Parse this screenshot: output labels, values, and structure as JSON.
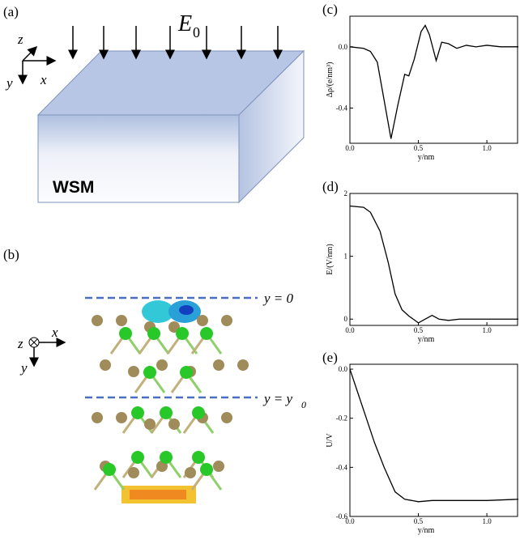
{
  "chart_data": [
    {
      "type": "line",
      "label": "(c)",
      "xlabel": "y/nm",
      "ylabel": "Δρ/(e/nm³)",
      "x": [
        0,
        0.1,
        0.15,
        0.2,
        0.25,
        0.3,
        0.35,
        0.4,
        0.43,
        0.47,
        0.52,
        0.55,
        0.58,
        0.63,
        0.67,
        0.72,
        0.78,
        0.85,
        0.92,
        1.0,
        1.1,
        1.23
      ],
      "series": [
        {
          "color": "#000000",
          "values": [
            0,
            -0.01,
            -0.03,
            -0.1,
            -0.35,
            -0.6,
            -0.38,
            -0.18,
            -0.19,
            -0.08,
            0.1,
            0.14,
            0.08,
            -0.09,
            0.03,
            0.02,
            -0.01,
            0.01,
            0.0,
            0.01,
            0.0,
            0.0
          ]
        }
      ],
      "xlim": [
        0,
        1.23
      ],
      "xticks": [
        {
          "value": 0,
          "label": "0.0"
        },
        {
          "value": 0.5,
          "label": "0.5"
        },
        {
          "value": 1,
          "label": "1.0"
        }
      ],
      "ylim": [
        -0.63,
        0.2
      ],
      "yticks": [
        {
          "value": 0,
          "label": "0.0"
        },
        {
          "value": -0.4,
          "label": "-0.4"
        }
      ]
    },
    {
      "type": "line",
      "label": "(d)",
      "xlabel": "y/nm",
      "ylabel": "E/(V/nm)",
      "x": [
        0,
        0.1,
        0.15,
        0.22,
        0.28,
        0.33,
        0.38,
        0.43,
        0.5,
        0.55,
        0.6,
        0.65,
        0.72,
        0.8,
        1.0,
        1.23
      ],
      "series": [
        {
          "color": "#000000",
          "values": [
            1.8,
            1.78,
            1.7,
            1.4,
            0.9,
            0.4,
            0.15,
            0.05,
            -0.06,
            0,
            0.06,
            0,
            -0.02,
            0,
            0,
            0
          ]
        }
      ],
      "xlim": [
        0,
        1.23
      ],
      "xticks": [
        {
          "value": 0,
          "label": "0.0"
        },
        {
          "value": 0.5,
          "label": "0.5"
        },
        {
          "value": 1,
          "label": "1.0"
        }
      ],
      "ylim": [
        -0.1,
        2
      ],
      "yticks": [
        0,
        1,
        2
      ]
    },
    {
      "type": "line",
      "label": "(e)",
      "xlabel": "y/nm",
      "ylabel": "U/V",
      "x": [
        0,
        0.06,
        0.12,
        0.18,
        0.25,
        0.33,
        0.4,
        0.5,
        0.6,
        0.8,
        1.0,
        1.23
      ],
      "series": [
        {
          "color": "#000000",
          "values": [
            0,
            -0.1,
            -0.2,
            -0.3,
            -0.4,
            -0.5,
            -0.53,
            -0.54,
            -0.535,
            -0.535,
            -0.535,
            -0.53
          ]
        }
      ],
      "xlim": [
        0,
        1.23
      ],
      "xticks": [
        {
          "value": 0,
          "label": "0.0"
        },
        {
          "value": 0.5,
          "label": "0.5"
        },
        {
          "value": 1,
          "label": "1.0"
        }
      ],
      "ylim": [
        -0.6,
        0.02
      ],
      "yticks": [
        {
          "value": 0,
          "label": "0.0"
        },
        {
          "value": -0.2,
          "label": "-0.2"
        },
        {
          "value": -0.4,
          "label": "-0.4"
        },
        {
          "value": -0.6,
          "label": "-0.6"
        }
      ]
    }
  ],
  "figure": {
    "panel_a": {
      "label": "(a)",
      "field": "E",
      "field_sub": "0",
      "axes": [
        "z",
        "x",
        "y"
      ],
      "material": "WSM"
    },
    "panel_b": {
      "label": "(b)",
      "axes": [
        "z",
        "x",
        "y"
      ],
      "line_top": "y = 0",
      "line_bottom": "y = y",
      "line_bottom_sub": "0"
    }
  }
}
